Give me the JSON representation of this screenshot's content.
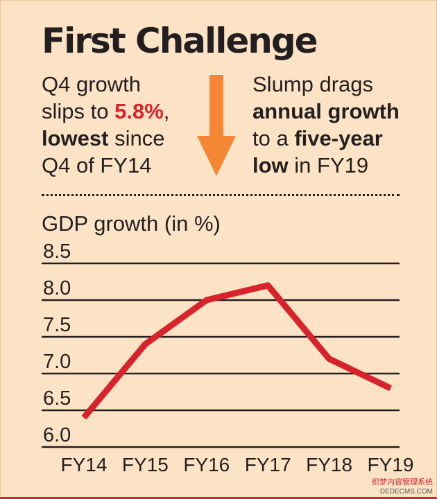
{
  "title": "First Challenge",
  "left_note": {
    "line1": "Q4 growth",
    "line2_pre": "slips to ",
    "line2_value": "5.8%",
    "line2_post": ",",
    "line3_bold": "lowest",
    "line3_post": " since",
    "line4": "Q4 of FY14"
  },
  "right_note": {
    "line1": "Slump drags",
    "line2_bold": "annual growth",
    "line3_pre": "to a ",
    "line3_bold": "five-year",
    "line4_bold": "low",
    "line4_post": " in FY19"
  },
  "colors": {
    "background": "#fde3c5",
    "line": "#d7232b",
    "highlight": "#d7232b",
    "arrow": "#f58634",
    "text": "#231f20"
  },
  "watermark": {
    "line1": "织梦内容管理系统",
    "line2": "DEDECMS.COM"
  },
  "chart_data": {
    "type": "line",
    "ylabel": "GDP growth (in %)",
    "categories": [
      "FY14",
      "FY15",
      "FY16",
      "FY17",
      "FY18",
      "FY19"
    ],
    "series": [
      {
        "values": [
          6.4,
          7.4,
          8.0,
          8.2,
          7.2,
          6.8
        ]
      }
    ],
    "yticks": [
      "8.5",
      "8.0",
      "7.5",
      "7.0",
      "6.5",
      "6.0"
    ],
    "ylim": [
      6.0,
      8.5
    ],
    "grid": true
  }
}
